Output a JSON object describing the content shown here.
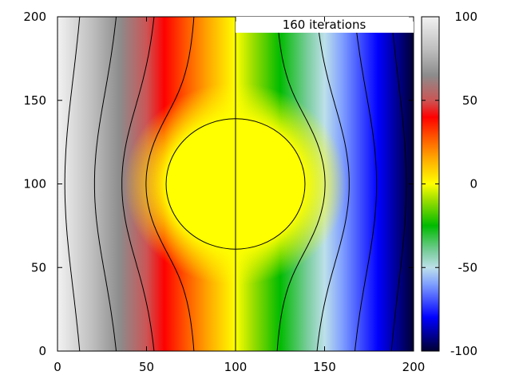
{
  "chart_data": {
    "type": "heatmap",
    "title": "",
    "xlabel": "",
    "ylabel": "",
    "xlim": [
      0,
      200
    ],
    "ylim": [
      0,
      200
    ],
    "x_ticks": [
      0,
      50,
      100,
      150,
      200
    ],
    "y_ticks": [
      0,
      50,
      100,
      150,
      200
    ],
    "annotation": "160 iterations",
    "field": {
      "description_values": "potential falls linearly from 100 at x=0 to -100 at x=200; circular equipotential region of value 0",
      "left_value": 100,
      "right_value": -100,
      "circle_center": [
        100,
        100
      ],
      "circle_radius": 39,
      "circle_value": 0
    },
    "contour_levels": [
      80,
      60,
      40,
      20,
      0,
      -20,
      -40,
      -60,
      -80
    ],
    "colorbar": {
      "range": [
        -100,
        100
      ],
      "ticks": [
        100,
        50,
        0,
        -50,
        -100
      ],
      "colormap": [
        {
          "value": 100,
          "color": "#f2f2f2"
        },
        {
          "value": 80,
          "color": "#bdbdbd"
        },
        {
          "value": 65,
          "color": "#8c8c8c"
        },
        {
          "value": 50,
          "color": "#cc5555"
        },
        {
          "value": 40,
          "color": "#ff0000"
        },
        {
          "value": 28,
          "color": "#ff5500"
        },
        {
          "value": 15,
          "color": "#ffaa00"
        },
        {
          "value": 0,
          "color": "#ffff00"
        },
        {
          "value": -10,
          "color": "#99dd00"
        },
        {
          "value": -25,
          "color": "#00bb00"
        },
        {
          "value": -40,
          "color": "#77cc99"
        },
        {
          "value": -50,
          "color": "#bde0ea"
        },
        {
          "value": -60,
          "color": "#7f9fff"
        },
        {
          "value": -80,
          "color": "#0000ff"
        },
        {
          "value": -100,
          "color": "#000033"
        }
      ]
    },
    "grid": false
  }
}
